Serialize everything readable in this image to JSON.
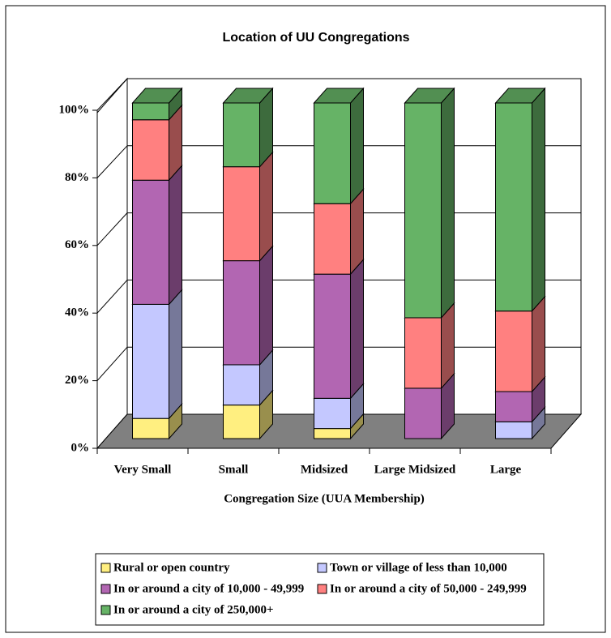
{
  "chart_data": {
    "type": "stacked_bar_3d",
    "title": "Location of  UU Congregations",
    "x_label": "Congregation Size (UUA Membership)",
    "categories": [
      "Very Small",
      "Small",
      "Midsized",
      "Large Midsized",
      "Large"
    ],
    "series": [
      {
        "name": "Rural or open country",
        "color": "#ffef80",
        "values": [
          6,
          10,
          3,
          0,
          0
        ]
      },
      {
        "name": "Town or village of less than 10,000",
        "color": "#c4c8ff",
        "values": [
          34,
          12,
          9,
          0,
          5
        ]
      },
      {
        "name": "In or around a city of 10,000 - 49,999",
        "color": "#b266b2",
        "values": [
          37,
          31,
          37,
          15,
          9
        ]
      },
      {
        "name": "In or around a city of 50,000 - 249,999",
        "color": "#ff8080",
        "values": [
          18,
          28,
          21,
          21,
          24
        ]
      },
      {
        "name": "In or around a city of 250,000+",
        "color": "#66b366",
        "values": [
          5,
          19,
          30,
          64,
          62
        ]
      }
    ],
    "ylim": [
      0,
      100
    ],
    "yticks": [
      {
        "value": 0,
        "label": "0%"
      },
      {
        "value": 20,
        "label": "20%"
      },
      {
        "value": 40,
        "label": "40%"
      },
      {
        "value": 60,
        "label": "60%"
      },
      {
        "value": 80,
        "label": "80%"
      },
      {
        "value": 100,
        "label": "100%"
      }
    ],
    "grid": true
  }
}
